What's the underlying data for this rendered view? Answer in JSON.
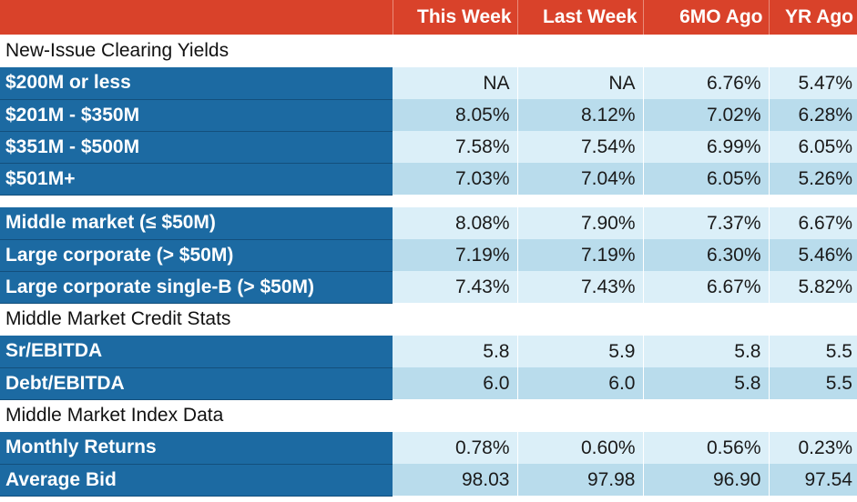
{
  "header": {
    "corner": "",
    "columns": [
      "This Week",
      "Last Week",
      "6MO Ago",
      "YR Ago"
    ]
  },
  "sections": {
    "clearing": {
      "title": "New-Issue Clearing Yields",
      "rows": [
        {
          "label": "$200M or less",
          "values": [
            "NA",
            "NA",
            "6.76%",
            "5.47%"
          ]
        },
        {
          "label": "$201M - $350M",
          "values": [
            "8.05%",
            "8.12%",
            "7.02%",
            "6.28%"
          ]
        },
        {
          "label": "$351M - $500M",
          "values": [
            "7.58%",
            "7.54%",
            "6.99%",
            "6.05%"
          ]
        },
        {
          "label": "$501M+",
          "values": [
            "7.03%",
            "7.04%",
            "6.05%",
            "5.26%"
          ]
        }
      ]
    },
    "segments": {
      "rows": [
        {
          "label": "Middle market (≤ $50M)",
          "values": [
            "8.08%",
            "7.90%",
            "7.37%",
            "6.67%"
          ]
        },
        {
          "label": "Large corporate (> $50M)",
          "values": [
            "7.19%",
            "7.19%",
            "6.30%",
            "5.46%"
          ]
        },
        {
          "label": "Large corporate single-B (> $50M)",
          "values": [
            "7.43%",
            "7.43%",
            "6.67%",
            "5.82%"
          ]
        }
      ]
    },
    "credit": {
      "title": "Middle Market Credit Stats",
      "rows": [
        {
          "label": "Sr/EBITDA",
          "values": [
            "5.8",
            "5.9",
            "5.8",
            "5.5"
          ]
        },
        {
          "label": "Debt/EBITDA",
          "values": [
            "6.0",
            "6.0",
            "5.8",
            "5.5"
          ]
        }
      ]
    },
    "index": {
      "title": "Middle Market Index Data",
      "rows": [
        {
          "label": "Monthly Returns",
          "values": [
            "0.78%",
            "0.60%",
            "0.56%",
            "0.23%"
          ]
        },
        {
          "label": "Average Bid",
          "values": [
            "98.03",
            "97.98",
            "96.90",
            "97.54"
          ]
        }
      ]
    }
  },
  "colors": {
    "header_bg": "#d9422a",
    "label_bg": "#1c6aa2",
    "cell_light": "#dbeff8",
    "cell_dark": "#b9dcec"
  }
}
